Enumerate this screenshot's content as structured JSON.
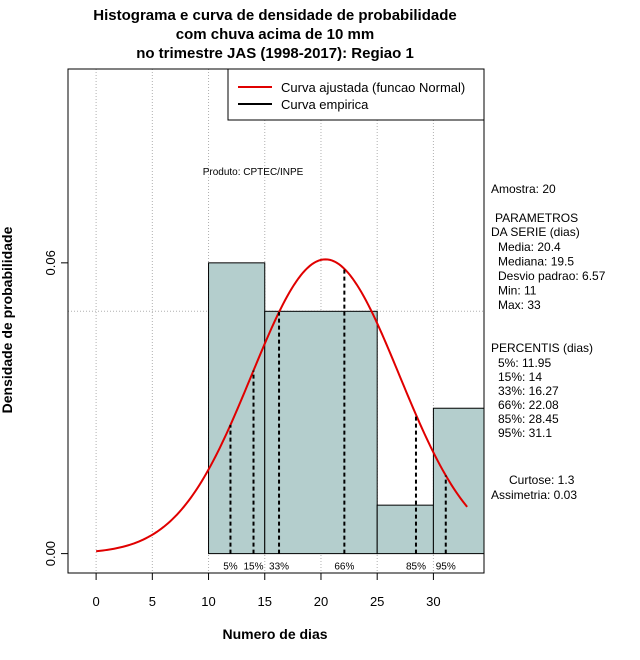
{
  "chart_data": {
    "type": "bar",
    "title_lines": [
      "Histograma e curva de densidade de probabilidade",
      "com chuva acima de 10 mm",
      "no trimestre JAS (1998-2017): Regiao 1"
    ],
    "xlabel": "Numero de dias",
    "ylabel": "Densidade de probabilidade",
    "xlim": [
      -2.5,
      34.5
    ],
    "ylim": [
      -0.004,
      0.1
    ],
    "xticks": [
      0,
      5,
      10,
      15,
      20,
      25,
      30
    ],
    "xtick_labels": [
      "0",
      "5",
      "10",
      "15",
      "20",
      "25",
      "30"
    ],
    "yticks": [
      0.0,
      0.06
    ],
    "ytick_labels": [
      "0.00",
      "0.06"
    ],
    "grid_x": [
      0,
      5,
      10,
      15,
      20,
      25,
      30
    ],
    "grid_y": [
      0.05,
      0.1
    ],
    "bins": [
      {
        "from": 10,
        "to": 15,
        "density": 0.06
      },
      {
        "from": 15,
        "to": 25,
        "density": 0.05
      },
      {
        "from": 25,
        "to": 30,
        "density": 0.01
      },
      {
        "from": 30,
        "to": 35,
        "density": 0.03
      }
    ],
    "bar_color": "#b4cecd",
    "normal_curve": {
      "mean": 20.4,
      "sd": 6.57,
      "x_range": [
        0,
        33
      ],
      "color": "#e00000"
    },
    "percentiles": [
      {
        "label": "5%",
        "value": 11.95
      },
      {
        "label": "15%",
        "value": 14
      },
      {
        "label": "33%",
        "value": 16.27
      },
      {
        "label": "66%",
        "value": 22.08
      },
      {
        "label": "85%",
        "value": 28.45
      },
      {
        "label": "95%",
        "value": 31.1
      }
    ],
    "legend": {
      "position": "top-right",
      "items": [
        {
          "label": "Curva ajustada (funcao Normal)",
          "color": "#e00000"
        },
        {
          "label": "Curva empirica",
          "color": "#000000"
        }
      ]
    },
    "credit": "Produto: CPTEC/INPE"
  },
  "stats_panel": {
    "amostra": "Amostra: 20",
    "parametros_title": "PARAMETROS",
    "serie_title": "DA SERIE (dias)",
    "parametros": [
      "Media: 20.4",
      "Mediana: 19.5",
      "Desvio padrao: 6.57",
      "Min: 11",
      "Max: 33"
    ],
    "percentis_title": "PERCENTIS (dias)",
    "percentis": [
      "5%: 11.95",
      "15%: 14",
      "33%: 16.27",
      "66%: 22.08",
      "85%: 28.45",
      "95%: 31.1"
    ],
    "curtose": "Curtose: 1.3",
    "assimetria": "Assimetria: 0.03"
  }
}
